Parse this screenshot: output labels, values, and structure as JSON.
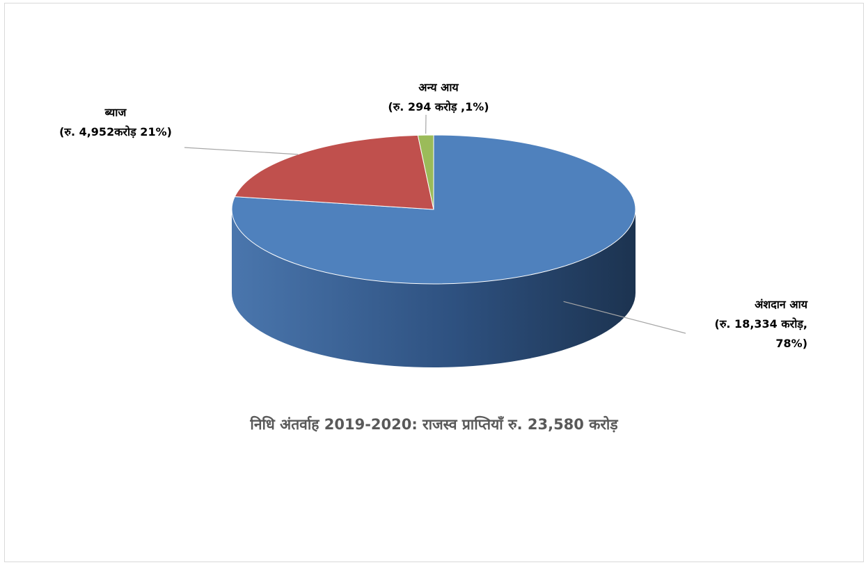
{
  "chart_data": {
    "type": "pie",
    "title": "निधि अंतर्वाह 2019-2020: राजस्व प्राप्तियाँ रु. 23,580 करोड़",
    "slices": [
      {
        "name": "अंशदान आय",
        "value": 18334,
        "percent": 78,
        "color": "#4f81bd",
        "label_lines": [
          "अंशदान आय",
          "(रु.   18,334 करोड़,",
          "78%)"
        ]
      },
      {
        "name": "ब्याज",
        "value": 4952,
        "percent": 21,
        "color": "#c0504d",
        "label_lines": [
          "ब्याज",
          "(रु. 4,952करोड़ 21%)"
        ]
      },
      {
        "name": "अन्य आय",
        "value": 294,
        "percent": 1,
        "color": "#9bbb59",
        "label_lines": [
          "अन्य आय",
          "(रु. 294 करोड़ ,1%)"
        ]
      }
    ],
    "style": "3d-pie",
    "start_angle_deg": 0,
    "direction": "clockwise"
  }
}
